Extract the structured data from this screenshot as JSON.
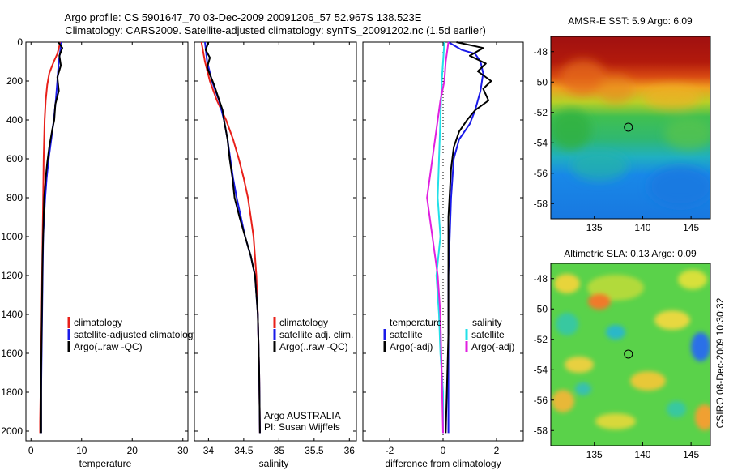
{
  "figure": {
    "title_line1": "Argo profile: CS 5901647_70 03-Dec-2009 20091206_57 52.967S 138.523E",
    "title_line2": "Climatology: CARS2009. Satellite-adjusted climatology: synTS_20091202.nc (1.5d earlier)",
    "credit": "CSIRO 08-Dec-2009 10:30:32"
  },
  "colors": {
    "climatology": "#e8201a",
    "satellite": "#1a1ae8",
    "argo": "#000000",
    "salinity_satellite": "#22e0e8",
    "salinity_argo": "#e020e0"
  },
  "chart_data": [
    {
      "id": "temperature",
      "type": "line",
      "xlabel": "temperature",
      "ylabel": "",
      "xlim": [
        -1,
        31
      ],
      "ylim": [
        2050,
        0
      ],
      "xticks": [
        0,
        10,
        20,
        30
      ],
      "yticks": [
        0,
        200,
        400,
        600,
        800,
        1000,
        1200,
        1400,
        1600,
        1800,
        2000
      ],
      "legend": {
        "placement": "lower-right",
        "entries": [
          "climatology",
          "satellite-adjusted climatology",
          "Argo(..raw -QC)"
        ]
      },
      "series": [
        {
          "name": "climatology",
          "color": "#e8201a",
          "x": [
            5.8,
            5.2,
            4.5,
            3.6,
            3.2,
            2.9,
            2.7,
            2.5,
            2.4,
            2.3,
            2.2,
            2.1,
            2.0,
            1.9,
            1.8,
            1.8
          ],
          "y": [
            0,
            60,
            100,
            160,
            220,
            300,
            400,
            600,
            800,
            1000,
            1200,
            1400,
            1600,
            1800,
            1950,
            2010
          ]
        },
        {
          "name": "satellite-adjusted climatology",
          "color": "#1a1ae8",
          "x": [
            6.0,
            5.8,
            5.5,
            5.2,
            4.9,
            4.5,
            4.0,
            3.5,
            3.1,
            2.8,
            2.6,
            2.4,
            2.3,
            2.2,
            2.1,
            2.0,
            2.0
          ],
          "y": [
            0,
            40,
            100,
            200,
            300,
            400,
            500,
            600,
            700,
            800,
            900,
            1000,
            1200,
            1400,
            1600,
            1800,
            2010
          ]
        },
        {
          "name": "Argo(..raw -QC)",
          "color": "#000000",
          "x": [
            5.4,
            6.2,
            5.6,
            5.9,
            5.2,
            5.5,
            4.8,
            4.6,
            4.2,
            3.6,
            3.2,
            2.9,
            2.6,
            2.5,
            2.3,
            2.2,
            2.1,
            2.0,
            2.0
          ],
          "y": [
            0,
            30,
            70,
            120,
            180,
            250,
            320,
            400,
            450,
            540,
            620,
            700,
            800,
            900,
            1100,
            1300,
            1500,
            1700,
            2010
          ]
        }
      ]
    },
    {
      "id": "salinity",
      "type": "line",
      "xlabel": "salinity",
      "ylabel": "",
      "xlim": [
        33.8,
        36.1
      ],
      "ylim": [
        2050,
        0
      ],
      "xticks": [
        34,
        34.5,
        35,
        35.5,
        36
      ],
      "xtick_labels": [
        "34",
        "34.5",
        "35",
        "35.5",
        "36"
      ],
      "legend": {
        "placement": "lower-right",
        "entries": [
          "climatology",
          "satellite adj. clim.",
          "Argo(..raw -QC)"
        ]
      },
      "annotations": [
        "Argo AUSTRALIA",
        "PI: Susan Wijffels"
      ],
      "series": [
        {
          "name": "climatology",
          "color": "#e8201a",
          "x": [
            33.9,
            33.95,
            34.02,
            34.12,
            34.25,
            34.35,
            34.43,
            34.5,
            34.56,
            34.6,
            34.64,
            34.68,
            34.7,
            34.72,
            34.73
          ],
          "y": [
            0,
            100,
            200,
            300,
            400,
            500,
            600,
            700,
            800,
            900,
            1000,
            1200,
            1400,
            1700,
            2010
          ]
        },
        {
          "name": "satellite adj. clim.",
          "color": "#1a1ae8",
          "x": [
            33.95,
            33.98,
            34.05,
            34.15,
            34.22,
            34.27,
            34.31,
            34.35,
            34.4,
            34.46,
            34.52,
            34.6,
            34.66,
            34.7,
            34.72,
            34.73
          ],
          "y": [
            0,
            100,
            200,
            300,
            400,
            500,
            600,
            700,
            800,
            900,
            1000,
            1100,
            1200,
            1400,
            1700,
            2010
          ]
        },
        {
          "name": "Argo(..raw -QC)",
          "color": "#000000",
          "x": [
            34.0,
            33.96,
            34.02,
            33.98,
            34.08,
            34.2,
            34.22,
            34.27,
            34.3,
            34.34,
            34.37,
            34.44,
            34.52,
            34.6,
            34.66,
            34.7,
            34.72,
            34.73
          ],
          "y": [
            0,
            40,
            80,
            130,
            220,
            350,
            400,
            500,
            600,
            700,
            800,
            900,
            1000,
            1100,
            1200,
            1400,
            1700,
            2010
          ]
        }
      ]
    },
    {
      "id": "difference",
      "type": "line",
      "xlabel": "difference from climatology",
      "ylabel": "",
      "xlim": [
        -3,
        3
      ],
      "ylim": [
        2050,
        0
      ],
      "xticks": [
        -2,
        0,
        2
      ],
      "legend": {
        "placement": "lower-center",
        "groups": [
          "temperature",
          "salinity"
        ],
        "entries": [
          "satellite",
          "Argo(-adj)",
          "satellite",
          "Argo(-adj)"
        ]
      },
      "series": [
        {
          "name": "temperature satellite",
          "color": "#1a1ae8",
          "x": [
            0.2,
            0.7,
            1.2,
            1.4,
            1.5,
            1.4,
            1.3,
            1.2,
            1.0,
            0.6,
            0.4,
            0.3,
            0.2,
            0.2
          ],
          "y": [
            0,
            40,
            60,
            100,
            160,
            250,
            300,
            350,
            420,
            500,
            600,
            800,
            1200,
            2010
          ]
        },
        {
          "name": "temperature Argo(-adj)",
          "color": "#000000",
          "x": [
            0.5,
            1.5,
            1.0,
            1.6,
            1.3,
            1.8,
            1.5,
            1.7,
            1.2,
            0.9,
            0.6,
            0.4,
            0.3,
            0.2,
            0.2,
            0.1
          ],
          "y": [
            0,
            30,
            70,
            110,
            150,
            200,
            240,
            300,
            350,
            400,
            460,
            540,
            650,
            900,
            1500,
            2010
          ]
        },
        {
          "name": "salinity satellite",
          "color": "#22e0e8",
          "x": [
            0.05,
            -0.05,
            -0.1,
            -0.15,
            -0.2,
            -0.1,
            -0.25,
            -0.15,
            -0.1,
            0.0,
            0.0
          ],
          "y": [
            0,
            200,
            400,
            600,
            800,
            1000,
            1200,
            1400,
            1600,
            1800,
            2010
          ]
        },
        {
          "name": "salinity Argo(-adj)",
          "color": "#e020e0",
          "x": [
            0.2,
            0.1,
            0.05,
            -0.1,
            -0.3,
            -0.5,
            -0.6,
            -0.5,
            -0.4,
            -0.3,
            -0.2,
            -0.1,
            0.0
          ],
          "y": [
            0,
            100,
            200,
            300,
            500,
            700,
            800,
            900,
            1000,
            1100,
            1200,
            1400,
            2010
          ]
        }
      ]
    },
    {
      "id": "sst_map",
      "type": "heatmap",
      "title": "AMSR-E SST: 5.9 Argo: 6.09",
      "xlim": [
        130.5,
        147
      ],
      "ylim": [
        -59,
        -47
      ],
      "xticks": [
        135,
        140,
        145
      ],
      "yticks": [
        -48,
        -50,
        -52,
        -54,
        -56,
        -58
      ],
      "marker": {
        "lon": 138.52,
        "lat": -52.97
      }
    },
    {
      "id": "sla_map",
      "type": "heatmap",
      "title": "Altimetric SLA: 0.13 Argo: 0.09",
      "xlim": [
        130.5,
        147
      ],
      "ylim": [
        -59,
        -47
      ],
      "xticks": [
        135,
        140,
        145
      ],
      "yticks": [
        -48,
        -50,
        -52,
        -54,
        -56,
        -58
      ],
      "marker": {
        "lon": 138.52,
        "lat": -52.97
      }
    }
  ]
}
